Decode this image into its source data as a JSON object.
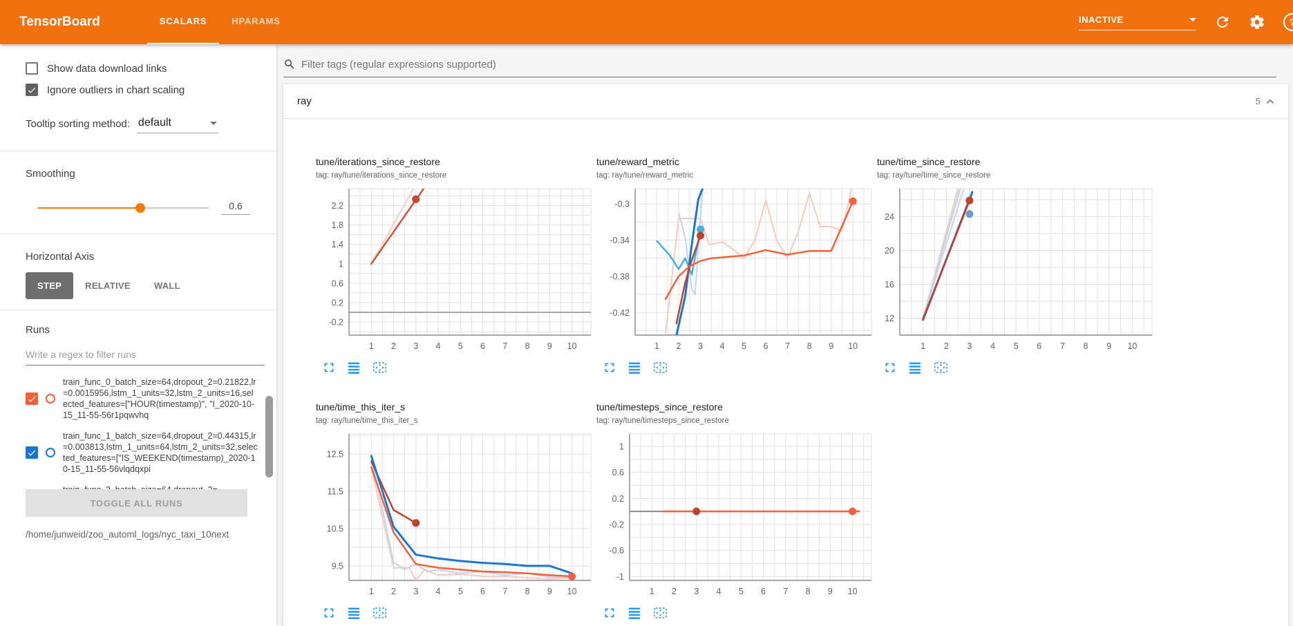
{
  "header": {
    "title": "TensorBoard",
    "tabs": [
      {
        "label": "SCALARS",
        "active": true
      },
      {
        "label": "HPARAMS",
        "active": false
      }
    ],
    "status_dropdown": {
      "value": "INACTIVE"
    },
    "help_label": "?"
  },
  "sidebar": {
    "checkboxes": [
      {
        "label": "Show data download links",
        "checked": false
      },
      {
        "label": "Ignore outliers in chart scaling",
        "checked": true
      }
    ],
    "tooltip_sorting": {
      "label": "Tooltip sorting method:",
      "value": "default"
    },
    "smoothing": {
      "label": "Smoothing",
      "value": "0.6",
      "percent": 60
    },
    "horizontal_axis": {
      "label": "Horizontal Axis",
      "options": [
        {
          "label": "STEP",
          "active": true
        },
        {
          "label": "RELATIVE",
          "active": false
        },
        {
          "label": "WALL",
          "active": false
        }
      ]
    },
    "runs": {
      "label": "Runs",
      "filter_placeholder": "Write a regex to filter runs",
      "items": [
        {
          "name": "train_func_0_batch_size=64,dropout_2=0.21822,lr=0.0015956,lstm_1_units=32,lstm_2_units=16,selected_features=[\"HOUR(timestamp)\", \"I_2020-10-15_11-55-56r1pqwvhq",
          "checked": true,
          "color": "#f4603c",
          "clipped": false
        },
        {
          "name": "train_func_1_batch_size=64,dropout_2=0.44315,lr=0.003813,lstm_1_units=64,lstm_2_units=32,selected_features=[\"IS_WEEKEND(timestamp)_2020-10-15_11-55-56vlqdqxpi",
          "checked": true,
          "color": "#1976d2",
          "clipped": false
        },
        {
          "name": "train_func_2_batch_size=64,dropout_2=",
          "checked": false,
          "color": "",
          "clipped": true
        }
      ],
      "toggle_all_label": "TOGGLE ALL RUNS",
      "log_path": "/home/junweid/zoo_automl_logs/nyc_taxi_10next"
    }
  },
  "main": {
    "filter_placeholder": "Filter tags (regular expressions supported)",
    "section": {
      "name": "ray",
      "count": "5"
    }
  },
  "chart_data": [
    {
      "type": "line",
      "title": "tune/iterations_since_restore",
      "tag": "tag: ray/tune/iterations_since_restore",
      "xlim": [
        0,
        10.85
      ],
      "ylim": [
        -0.47,
        2.55
      ],
      "xticks": [
        1,
        2,
        3,
        4,
        5,
        6,
        7,
        8,
        9,
        10
      ],
      "yticks": [
        2.2,
        1.8,
        1.4,
        1,
        0.6,
        0.2,
        -0.2
      ],
      "ytick_labels": [
        "2.2",
        "1.8",
        "1.4",
        "1",
        "0.6",
        "0.2",
        "-0.2"
      ],
      "y_minor_step": 0.2,
      "series": [
        {
          "name": "train_func_0 raw",
          "color": "#f9cfc2",
          "width": 2,
          "points": [
            [
              1,
              1
            ],
            [
              2.9,
              2.55
            ]
          ]
        },
        {
          "name": "train_func_0 smoothed",
          "color": "#d35435",
          "width": 2.5,
          "points": [
            [
              1,
              1
            ],
            [
              3.35,
              2.55
            ]
          ]
        },
        {
          "name": "constant zero run",
          "color": "#8a8a8a",
          "width": 1.5,
          "points": [
            [
              0,
              0
            ],
            [
              10.85,
              0
            ]
          ]
        }
      ],
      "dots": [
        {
          "x": 3,
          "y": 2.33,
          "color": "#c8482c"
        }
      ]
    },
    {
      "type": "line",
      "title": "tune/reward_metric",
      "tag": "tag: ray/tune/reward_metric",
      "xlim": [
        0,
        10.85
      ],
      "ylim": [
        -0.445,
        -0.283
      ],
      "xticks": [
        1,
        2,
        3,
        4,
        5,
        6,
        7,
        8,
        9,
        10
      ],
      "yticks": [
        -0.3,
        -0.34,
        -0.38,
        -0.42
      ],
      "ytick_labels": [
        "-0.3",
        "-0.34",
        "-0.38",
        "-0.42"
      ],
      "y_minor_step": 0.02,
      "series": [
        {
          "name": "train_func_0 raw",
          "color": "#f8cabb",
          "width": 2,
          "points": [
            [
              1.4,
              -0.443
            ],
            [
              2,
              -0.316
            ],
            [
              3,
              -0.316
            ],
            [
              3.4,
              -0.345
            ],
            [
              4,
              -0.342
            ],
            [
              4.6,
              -0.352
            ],
            [
              5,
              -0.36
            ],
            [
              5.5,
              -0.34
            ],
            [
              6,
              -0.296
            ],
            [
              6.5,
              -0.34
            ],
            [
              7,
              -0.36
            ],
            [
              7.5,
              -0.33
            ],
            [
              8,
              -0.288
            ],
            [
              8.5,
              -0.325
            ],
            [
              9,
              -0.325
            ],
            [
              9.5,
              -0.33
            ],
            [
              10,
              -0.276
            ]
          ]
        },
        {
          "name": "run raw pale blue",
          "color": "#bcd8ef",
          "width": 2,
          "points": [
            [
              2,
              -0.31
            ],
            [
              2.3,
              -0.337
            ],
            [
              2.6,
              -0.394
            ],
            [
              2.75,
              -0.4
            ],
            [
              3.1,
              -0.283
            ]
          ]
        },
        {
          "name": "run smoothed cyan",
          "color": "#3fb2e0",
          "width": 2.5,
          "points": [
            [
              1,
              -0.341
            ],
            [
              1.6,
              -0.357
            ],
            [
              2,
              -0.372
            ],
            [
              2.3,
              -0.36
            ],
            [
              2.6,
              -0.378
            ],
            [
              3,
              -0.328
            ]
          ]
        },
        {
          "name": "train_func_1 smoothed",
          "color": "#1976d2",
          "width": 3,
          "points": [
            [
              1.9,
              -0.445
            ],
            [
              2.3,
              -0.402
            ],
            [
              2.6,
              -0.345
            ],
            [
              2.9,
              -0.295
            ],
            [
              3.1,
              -0.283
            ]
          ]
        },
        {
          "name": "train_func_2 smoothed",
          "color": "#bf4229",
          "width": 2.5,
          "points": [
            [
              1.9,
              -0.432
            ],
            [
              2.3,
              -0.387
            ],
            [
              2.6,
              -0.362
            ],
            [
              3,
              -0.335
            ]
          ]
        },
        {
          "name": "train_func_0 smoothed",
          "color": "#f4603c",
          "width": 2.5,
          "points": [
            [
              1.4,
              -0.405
            ],
            [
              2,
              -0.38
            ],
            [
              2.5,
              -0.369
            ],
            [
              3,
              -0.363
            ],
            [
              3.5,
              -0.36
            ],
            [
              4,
              -0.359
            ],
            [
              5,
              -0.357
            ],
            [
              6,
              -0.351
            ],
            [
              7,
              -0.356
            ],
            [
              8,
              -0.352
            ],
            [
              9,
              -0.352
            ],
            [
              10,
              -0.297
            ]
          ]
        }
      ],
      "dots": [
        {
          "x": 3,
          "y": -0.328,
          "color": "#3fb2e0"
        },
        {
          "x": 3,
          "y": -0.335,
          "color": "#bf4229"
        },
        {
          "x": 10,
          "y": -0.297,
          "color": "#f4603c"
        }
      ]
    },
    {
      "type": "line",
      "title": "tune/time_since_restore",
      "tag": "tag: ray/tune/time_since_restore",
      "xlim": [
        0,
        10.85
      ],
      "ylim": [
        10,
        27.3
      ],
      "xticks": [
        1,
        2,
        3,
        4,
        5,
        6,
        7,
        8,
        9,
        10
      ],
      "yticks": [
        24,
        20,
        16,
        12
      ],
      "ytick_labels": [
        "24",
        "20",
        "16",
        "12"
      ],
      "y_minor_step": 2,
      "series": [
        {
          "name": "raw pale lavender",
          "color": "#cfd3ea",
          "width": 2,
          "points": [
            [
              1,
              12
            ],
            [
              2.75,
              27.3
            ]
          ]
        },
        {
          "name": "raw pale gray",
          "color": "#d9d9d9",
          "width": 2,
          "points": [
            [
              1,
              12.1
            ],
            [
              2.62,
              27.3
            ]
          ]
        },
        {
          "name": "raw pale pink",
          "color": "#f8cabb",
          "width": 2,
          "points": [
            [
              1,
              12
            ],
            [
              2.5,
              27.3
            ]
          ]
        },
        {
          "name": "raw pale blue",
          "color": "#bcd8ef",
          "width": 2,
          "points": [
            [
              1,
              11.9
            ],
            [
              2.58,
              27.3
            ]
          ]
        },
        {
          "name": "train_func_1 smoothed",
          "color": "#1976d2",
          "width": 3,
          "points": [
            [
              1,
              11.8
            ],
            [
              3.12,
              26.9
            ]
          ]
        },
        {
          "name": "train_func_2 smoothed",
          "color": "#bf4229",
          "width": 2.5,
          "points": [
            [
              1,
              11.9
            ],
            [
              3,
              25.9
            ]
          ]
        }
      ],
      "dots": [
        {
          "x": 3,
          "y": 25.9,
          "color": "#bf4229"
        },
        {
          "x": 3,
          "y": 24.3,
          "color": "#6d9dc1"
        }
      ]
    },
    {
      "type": "line",
      "title": "tune/time_this_iter_s",
      "tag": "tag: ray/tune/time_this_iter_s",
      "xlim": [
        0,
        10.85
      ],
      "ylim": [
        9.11,
        13.04
      ],
      "xticks": [
        1,
        2,
        3,
        4,
        5,
        6,
        7,
        8,
        9,
        10
      ],
      "yticks": [
        12.5,
        11.5,
        10.5,
        9.5
      ],
      "ytick_labels": [
        "12.5",
        "11.5",
        "10.5",
        "9.5"
      ],
      "y_minor_step": 0.5,
      "series": [
        {
          "name": "raw pale cyan",
          "color": "#bcd8ef",
          "width": 2,
          "points": [
            [
              1,
              12.42
            ],
            [
              2,
              9.6
            ],
            [
              2.5,
              9.4
            ],
            [
              3,
              9.55
            ],
            [
              3.5,
              9.35
            ],
            [
              4,
              9.4
            ],
            [
              5,
              9.3
            ],
            [
              6,
              9.35
            ],
            [
              7,
              9.25
            ],
            [
              8,
              9.3
            ],
            [
              9,
              9.2
            ],
            [
              10,
              9.2
            ]
          ]
        },
        {
          "name": "raw pale pink",
          "color": "#f8cabb",
          "width": 2,
          "points": [
            [
              1,
              12.15
            ],
            [
              2,
              9.45
            ],
            [
              2.7,
              9.45
            ],
            [
              3,
              9.12
            ],
            [
              3.4,
              9.4
            ],
            [
              4,
              9.25
            ],
            [
              5,
              9.28
            ],
            [
              6,
              9.22
            ],
            [
              7,
              9.22
            ],
            [
              8,
              9.18
            ],
            [
              9,
              9.15
            ],
            [
              10,
              9.18
            ]
          ]
        },
        {
          "name": "train_func_2 smoothed",
          "color": "#bf4229",
          "width": 2.5,
          "points": [
            [
              1,
              12.3
            ],
            [
              2,
              11
            ],
            [
              3,
              10.65
            ]
          ]
        },
        {
          "name": "train_func_1 smoothed",
          "color": "#1976d2",
          "width": 3,
          "points": [
            [
              1,
              12.45
            ],
            [
              2,
              10.55
            ],
            [
              3,
              9.8
            ],
            [
              4,
              9.7
            ],
            [
              5,
              9.63
            ],
            [
              6,
              9.58
            ],
            [
              7,
              9.55
            ],
            [
              8,
              9.5
            ],
            [
              9,
              9.5
            ],
            [
              10,
              9.3
            ]
          ]
        },
        {
          "name": "train_func_0 smoothed",
          "color": "#f4603c",
          "width": 2.5,
          "points": [
            [
              1,
              12.15
            ],
            [
              2,
              10.4
            ],
            [
              3,
              9.55
            ],
            [
              4,
              9.45
            ],
            [
              5,
              9.4
            ],
            [
              6,
              9.35
            ],
            [
              7,
              9.33
            ],
            [
              8,
              9.3
            ],
            [
              9,
              9.25
            ],
            [
              10,
              9.22
            ]
          ]
        }
      ],
      "dots": [
        {
          "x": 3,
          "y": 10.65,
          "color": "#bf4229"
        },
        {
          "x": 10,
          "y": 9.22,
          "color": "#f4603c"
        }
      ]
    },
    {
      "type": "line",
      "title": "tune/timesteps_since_restore",
      "tag": "tag: ray/tune/timesteps_since_restore",
      "xlim": [
        0,
        10.85
      ],
      "ylim": [
        -1.06,
        1.19
      ],
      "xticks": [
        1,
        2,
        3,
        4,
        5,
        6,
        7,
        8,
        9,
        10
      ],
      "yticks": [
        1,
        0.6,
        0.2,
        -0.2,
        -0.6,
        -1
      ],
      "ytick_labels": [
        "1",
        "0.6",
        "0.2",
        "-0.2",
        "-0.6",
        "-1"
      ],
      "y_minor_step": 0.2,
      "series": [
        {
          "name": "constant zero gray",
          "color": "#8a8a8a",
          "width": 2,
          "points": [
            [
              0,
              0
            ],
            [
              1.55,
              0
            ]
          ]
        },
        {
          "name": "train_func_0 smoothed",
          "color": "#f4603c",
          "width": 2.5,
          "points": [
            [
              1.55,
              0
            ],
            [
              10.3,
              0
            ]
          ]
        }
      ],
      "dots": [
        {
          "x": 3,
          "y": 0,
          "color": "#bf4229"
        },
        {
          "x": 10,
          "y": 0,
          "color": "#f4603c"
        }
      ]
    }
  ]
}
